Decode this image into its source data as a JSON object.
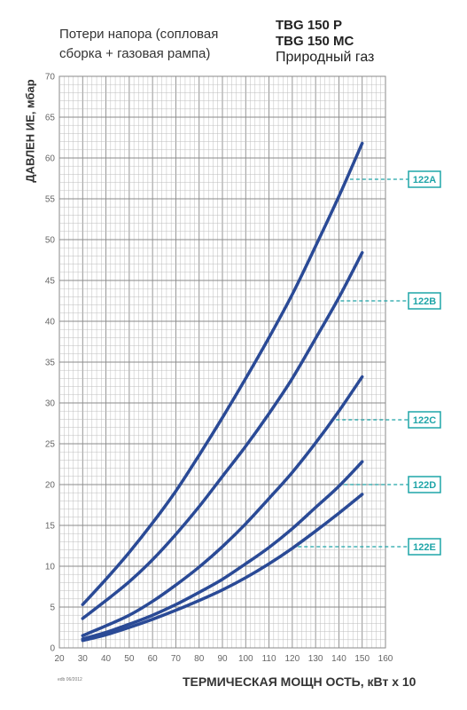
{
  "header": {
    "subtitle_line1": "Потери напора (сопловая",
    "subtitle_line2": "сборка + газовая рампа)",
    "model_line1": "TBG 150 P",
    "model_line2": "TBG 150 MC",
    "model_line3": "Природный газ"
  },
  "footnote": "edb 06/2012",
  "chart_data": {
    "type": "line",
    "ylabel": "ДАВЛЕН ИЕ, мбар",
    "xlabel": "ТЕРМИЧЕСКАЯ МОЩН ОСТЬ, кВт х 10",
    "xlim": [
      20,
      160
    ],
    "ylim": [
      0,
      70
    ],
    "x_ticks": [
      "20",
      "30",
      "40",
      "50",
      "60",
      "70",
      "80",
      "90",
      "100",
      "110",
      "120",
      "130",
      "140",
      "150",
      "160"
    ],
    "y_ticks": [
      "0",
      "5",
      "10",
      "15",
      "20",
      "25",
      "30",
      "35",
      "40",
      "45",
      "50",
      "55",
      "60",
      "65",
      "70"
    ],
    "grid": true,
    "line_color": "#2a4a96",
    "tag_color": "#1fa5a8",
    "series": [
      {
        "name": "122A",
        "x": [
          30,
          40,
          50,
          60,
          70,
          80,
          90,
          100,
          110,
          120,
          130,
          140,
          150
        ],
        "y": [
          5.3,
          8.4,
          11.7,
          15.3,
          19.2,
          23.6,
          28.2,
          33.0,
          38.0,
          43.3,
          49.2,
          55.3,
          61.8
        ]
      },
      {
        "name": "122B",
        "x": [
          30,
          40,
          50,
          60,
          70,
          80,
          90,
          100,
          110,
          120,
          130,
          140,
          150
        ],
        "y": [
          3.6,
          5.8,
          8.1,
          10.8,
          13.9,
          17.3,
          21.0,
          24.7,
          28.7,
          33.0,
          37.9,
          42.9,
          48.4
        ]
      },
      {
        "name": "122C",
        "x": [
          30,
          40,
          50,
          60,
          70,
          80,
          90,
          100,
          110,
          120,
          130,
          140,
          150
        ],
        "y": [
          1.5,
          2.7,
          4.0,
          5.7,
          7.7,
          9.9,
          12.4,
          15.2,
          18.3,
          21.5,
          25.1,
          29.0,
          33.2
        ]
      },
      {
        "name": "122D",
        "x": [
          30,
          40,
          50,
          60,
          70,
          80,
          90,
          100,
          110,
          120,
          130,
          140,
          150
        ],
        "y": [
          1.1,
          1.9,
          2.9,
          4.0,
          5.3,
          6.8,
          8.4,
          10.3,
          12.3,
          14.6,
          17.2,
          19.8,
          22.8
        ]
      },
      {
        "name": "122E",
        "x": [
          30,
          40,
          50,
          60,
          70,
          80,
          90,
          100,
          110,
          120,
          130,
          140,
          150
        ],
        "y": [
          0.9,
          1.6,
          2.5,
          3.5,
          4.6,
          5.8,
          7.1,
          8.6,
          10.3,
          12.2,
          14.3,
          16.5,
          18.8
        ]
      }
    ]
  }
}
